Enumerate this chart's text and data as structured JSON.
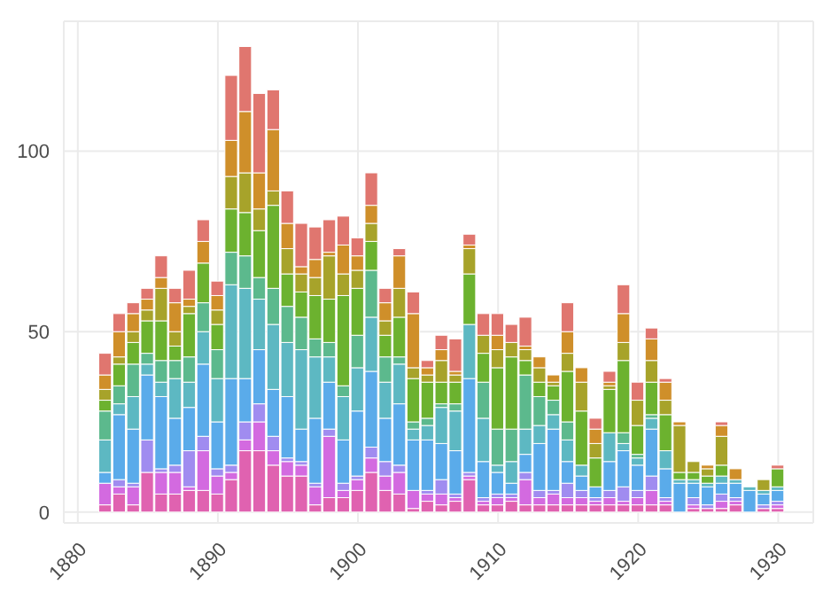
{
  "chart_data": {
    "type": "bar",
    "stacked": true,
    "grid": true,
    "x": [
      1882,
      1883,
      1884,
      1885,
      1886,
      1887,
      1888,
      1889,
      1890,
      1891,
      1892,
      1893,
      1894,
      1895,
      1896,
      1897,
      1898,
      1899,
      1900,
      1901,
      1902,
      1903,
      1904,
      1905,
      1906,
      1907,
      1908,
      1909,
      1910,
      1911,
      1912,
      1913,
      1914,
      1915,
      1916,
      1917,
      1918,
      1919,
      1920,
      1921,
      1922,
      1923,
      1924,
      1925,
      1926,
      1927,
      1928,
      1929,
      1930
    ],
    "xlim": [
      1879,
      1932.5
    ],
    "xticks": [
      1880,
      1890,
      1900,
      1910,
      1920,
      1930
    ],
    "ylim": [
      -3,
      136
    ],
    "yticks": [
      0,
      50,
      100
    ],
    "series": [
      {
        "color": "#e062b0",
        "values": [
          2,
          5,
          2,
          11,
          5,
          5,
          6,
          6,
          5,
          9,
          17,
          17,
          13,
          10,
          10,
          2,
          4,
          4,
          6,
          11,
          6,
          5,
          1,
          3,
          2,
          3,
          9,
          2,
          2,
          3,
          2,
          2,
          2,
          2,
          2,
          2,
          2,
          2,
          2,
          2,
          2,
          0,
          1,
          1,
          1,
          2,
          0,
          1,
          1
        ]
      },
      {
        "color": "#d36ae0",
        "values": [
          6,
          2,
          5,
          0,
          6,
          6,
          1,
          11,
          5,
          2,
          3,
          8,
          4,
          4,
          3,
          5,
          17,
          2,
          3,
          4,
          4,
          6,
          5,
          2,
          3,
          1,
          1,
          1,
          2,
          1,
          7,
          2,
          3,
          2,
          2,
          1,
          2,
          1,
          2,
          4,
          1,
          0,
          1,
          0,
          2,
          1,
          0,
          0,
          1
        ]
      },
      {
        "color": "#a08cf0",
        "values": [
          0,
          2,
          1,
          9,
          1,
          2,
          10,
          4,
          2,
          2,
          5,
          5,
          4,
          1,
          1,
          1,
          2,
          2,
          1,
          3,
          4,
          2,
          0,
          1,
          4,
          1,
          1,
          1,
          1,
          1,
          2,
          2,
          1,
          4,
          2,
          1,
          2,
          4,
          2,
          4,
          1,
          0,
          2,
          1,
          2,
          1,
          0,
          1,
          1
        ]
      },
      {
        "color": "#5aabea",
        "values": [
          3,
          18,
          15,
          18,
          20,
          13,
          12,
          20,
          13,
          24,
          12,
          15,
          13,
          17,
          9,
          18,
          13,
          12,
          18,
          21,
          12,
          17,
          14,
          14,
          10,
          12,
          26,
          10,
          6,
          3,
          5,
          13,
          17,
          6,
          4,
          3,
          8,
          10,
          7,
          13,
          8,
          8,
          4,
          5,
          3,
          4,
          6,
          3,
          3
        ]
      },
      {
        "color": "#5db8c2",
        "values": [
          9,
          3,
          9,
          3,
          4,
          11,
          7,
          9,
          12,
          26,
          25,
          14,
          18,
          15,
          22,
          17,
          7,
          12,
          12,
          15,
          10,
          11,
          3,
          4,
          10,
          11,
          15,
          12,
          2,
          6,
          7,
          5,
          4,
          6,
          3,
          0,
          8,
          2,
          2,
          3,
          5,
          1,
          1,
          1,
          2,
          1,
          1,
          1,
          1
        ]
      },
      {
        "color": "#5cb98d",
        "values": [
          8,
          5,
          9,
          3,
          6,
          5,
          7,
          8,
          8,
          9,
          9,
          6,
          10,
          10,
          9,
          5,
          4,
          3,
          9,
          13,
          7,
          2,
          2,
          2,
          1,
          2,
          0,
          10,
          10,
          9,
          15,
          8,
          4,
          5,
          0,
          0,
          0,
          3,
          1,
          1,
          0,
          0,
          0,
          0,
          0,
          0,
          0,
          0,
          0
        ]
      },
      {
        "color": "#6cb22f",
        "values": [
          3,
          6,
          6,
          9,
          11,
          4,
          12,
          11,
          7,
          12,
          12,
          13,
          23,
          9,
          7,
          12,
          12,
          25,
          13,
          8,
          6,
          11,
          12,
          10,
          6,
          6,
          14,
          8,
          17,
          20,
          4,
          4,
          4,
          14,
          15,
          8,
          12,
          20,
          8,
          9,
          10,
          2,
          2,
          2,
          3,
          0,
          0,
          0,
          5
        ]
      },
      {
        "color": "#a7a32a",
        "values": [
          3,
          2,
          3,
          3,
          9,
          4,
          2,
          0,
          4,
          9,
          11,
          6,
          4,
          7,
          5,
          5,
          12,
          6,
          5,
          5,
          4,
          8,
          3,
          2,
          6,
          2,
          7,
          5,
          5,
          4,
          3,
          4,
          1,
          5,
          8,
          4,
          1,
          5,
          7,
          6,
          4,
          13,
          3,
          2,
          8,
          0,
          0,
          3,
          0
        ]
      },
      {
        "color": "#cf8f2a",
        "values": [
          4,
          7,
          5,
          3,
          3,
          8,
          2,
          6,
          4,
          10,
          17,
          10,
          17,
          7,
          2,
          5,
          1,
          8,
          4,
          5,
          5,
          9,
          15,
          2,
          3,
          1,
          1,
          0,
          4,
          0,
          1,
          3,
          2,
          6,
          4,
          4,
          1,
          8,
          0,
          6,
          5,
          1,
          0,
          1,
          3,
          3,
          0,
          0,
          0
        ]
      },
      {
        "color": "#e0766f",
        "values": [
          6,
          5,
          3,
          3,
          6,
          4,
          8,
          6,
          4,
          18,
          18,
          22,
          11,
          9,
          12,
          9,
          9,
          8,
          5,
          9,
          4,
          2,
          6,
          2,
          4,
          9,
          3,
          6,
          6,
          5,
          8,
          0,
          0,
          8,
          0,
          3,
          3,
          8,
          5,
          3,
          1,
          0,
          0,
          0,
          1,
          0,
          0,
          0,
          1
        ]
      }
    ]
  }
}
